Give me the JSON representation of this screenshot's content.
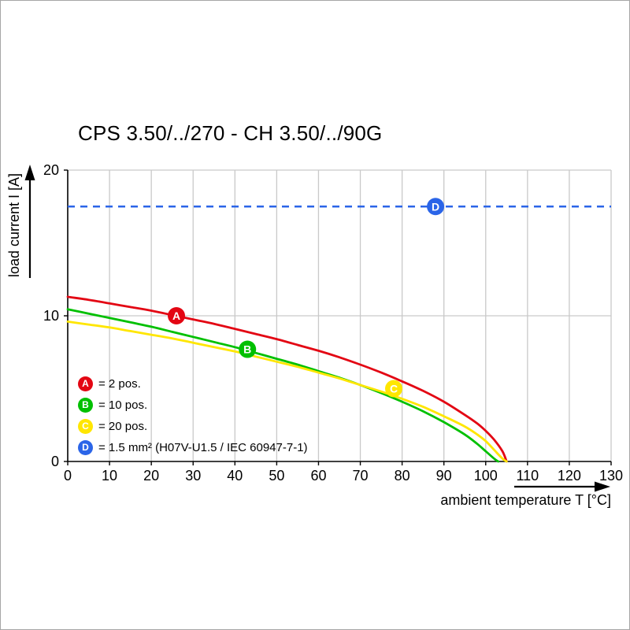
{
  "window": {
    "background": "#ffffff",
    "frame_border": "#a6a6a6"
  },
  "chart_data": {
    "type": "line",
    "title": "CPS 3.50/../270 - CH 3.50/../90G",
    "xlabel": "ambient temperature T [°C]",
    "ylabel": "load current I [A]",
    "xlim": [
      0,
      130
    ],
    "ylim": [
      0,
      20
    ],
    "x_ticks": [
      0,
      10,
      20,
      30,
      40,
      50,
      60,
      70,
      80,
      90,
      100,
      110,
      120,
      130
    ],
    "y_ticks": [
      0,
      10,
      20
    ],
    "grid": true,
    "colors": {
      "grid": "#c9c9c9",
      "axis": "#000000",
      "marker_text": "#ffffff"
    },
    "series": [
      {
        "id": "A",
        "name": "2 pos.",
        "color": "#e30613",
        "style": "solid",
        "marker_at": {
          "x": 26,
          "y": 10
        },
        "points": [
          [
            0,
            11.3
          ],
          [
            5,
            11.1
          ],
          [
            10,
            10.85
          ],
          [
            15,
            10.6
          ],
          [
            20,
            10.35
          ],
          [
            25,
            10.05
          ],
          [
            30,
            9.75
          ],
          [
            35,
            9.45
          ],
          [
            40,
            9.1
          ],
          [
            45,
            8.75
          ],
          [
            50,
            8.4
          ],
          [
            55,
            8.0
          ],
          [
            60,
            7.6
          ],
          [
            65,
            7.15
          ],
          [
            70,
            6.65
          ],
          [
            75,
            6.1
          ],
          [
            80,
            5.5
          ],
          [
            85,
            4.85
          ],
          [
            90,
            4.1
          ],
          [
            95,
            3.2
          ],
          [
            98,
            2.6
          ],
          [
            100,
            2.1
          ],
          [
            102,
            1.5
          ],
          [
            104,
            0.7
          ],
          [
            105,
            0
          ]
        ]
      },
      {
        "id": "B",
        "name": "10 pos.",
        "color": "#00c000",
        "style": "solid",
        "marker_at": {
          "x": 43,
          "y": 7.7
        },
        "points": [
          [
            0,
            10.45
          ],
          [
            5,
            10.15
          ],
          [
            10,
            9.85
          ],
          [
            15,
            9.55
          ],
          [
            20,
            9.25
          ],
          [
            25,
            8.9
          ],
          [
            30,
            8.55
          ],
          [
            35,
            8.2
          ],
          [
            40,
            7.85
          ],
          [
            45,
            7.45
          ],
          [
            50,
            7.05
          ],
          [
            55,
            6.65
          ],
          [
            60,
            6.2
          ],
          [
            65,
            5.75
          ],
          [
            70,
            5.25
          ],
          [
            75,
            4.7
          ],
          [
            80,
            4.1
          ],
          [
            85,
            3.45
          ],
          [
            90,
            2.7
          ],
          [
            95,
            1.85
          ],
          [
            98,
            1.2
          ],
          [
            100,
            0.7
          ],
          [
            102,
            0.2
          ],
          [
            103,
            0
          ]
        ]
      },
      {
        "id": "C",
        "name": "20 pos.",
        "color": "#ffe600",
        "style": "solid",
        "marker_at": {
          "x": 78,
          "y": 5
        },
        "points": [
          [
            0,
            9.6
          ],
          [
            5,
            9.4
          ],
          [
            10,
            9.2
          ],
          [
            15,
            8.95
          ],
          [
            20,
            8.7
          ],
          [
            25,
            8.45
          ],
          [
            30,
            8.15
          ],
          [
            35,
            7.85
          ],
          [
            40,
            7.55
          ],
          [
            45,
            7.2
          ],
          [
            50,
            6.85
          ],
          [
            55,
            6.5
          ],
          [
            60,
            6.1
          ],
          [
            65,
            5.7
          ],
          [
            70,
            5.25
          ],
          [
            75,
            4.8
          ],
          [
            80,
            4.3
          ],
          [
            85,
            3.75
          ],
          [
            90,
            3.1
          ],
          [
            95,
            2.4
          ],
          [
            98,
            1.85
          ],
          [
            100,
            1.4
          ],
          [
            102,
            0.8
          ],
          [
            104,
            0.2
          ],
          [
            105,
            0
          ]
        ]
      },
      {
        "id": "D",
        "name": "1.5 mm² (H07V-U1.5 / IEC 60947-7-1)",
        "color": "#2b65e8",
        "style": "dashed",
        "constant_y": 17.5,
        "marker_at": {
          "x": 88,
          "y": 17.5
        }
      }
    ],
    "legend": [
      {
        "id": "A",
        "color": "#e30613",
        "label": "= 2 pos."
      },
      {
        "id": "B",
        "color": "#00c000",
        "label": "= 10 pos."
      },
      {
        "id": "C",
        "color": "#ffe600",
        "label": "= 20 pos."
      },
      {
        "id": "D",
        "color": "#2b65e8",
        "label": "= 1.5 mm² (H07V-U1.5 / IEC 60947-7-1)"
      }
    ],
    "legend_position": "inside-bottom-left"
  }
}
